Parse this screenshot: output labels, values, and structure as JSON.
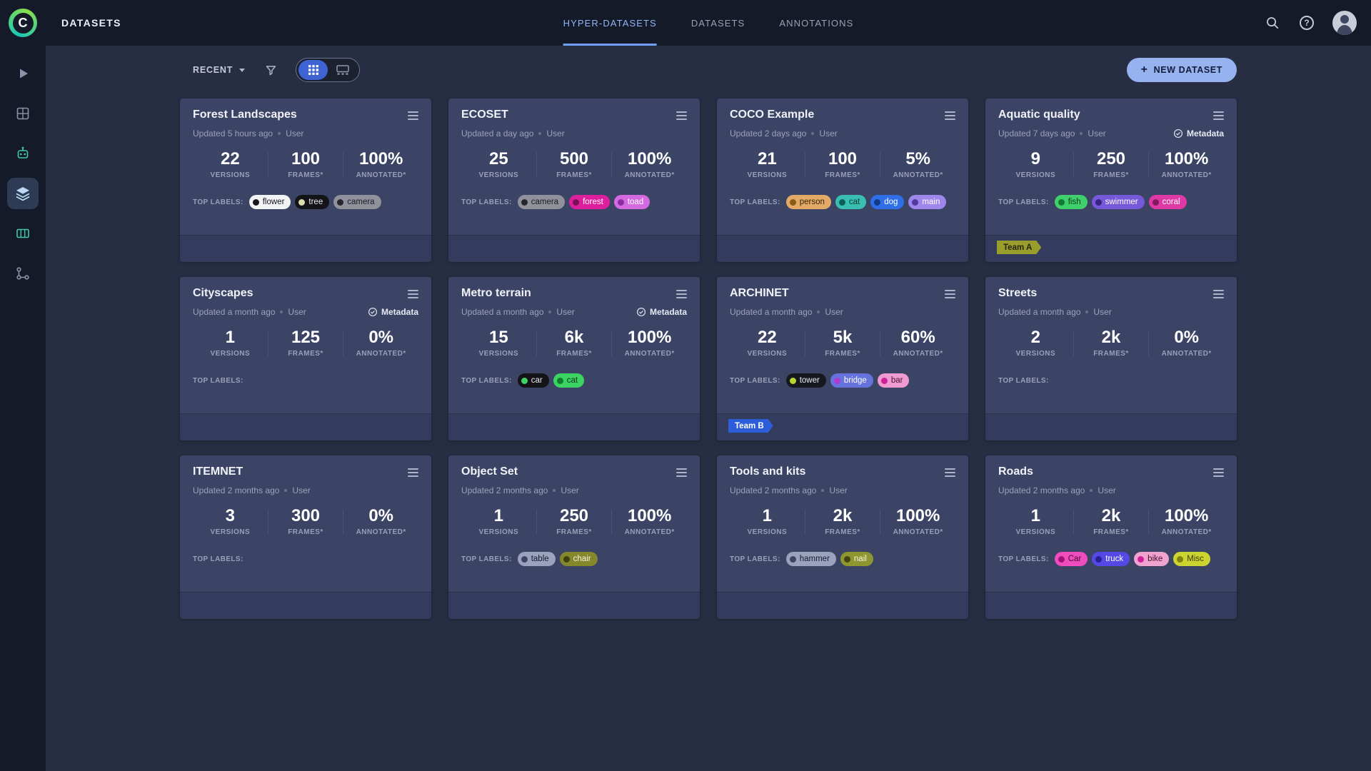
{
  "topbar": {
    "app_title": "DATASETS",
    "logo_letter": "C",
    "help_glyph": "?",
    "tabs": [
      {
        "label": "HYPER-DATASETS"
      },
      {
        "label": "DATASETS"
      },
      {
        "label": "ANNOTATIONS"
      }
    ]
  },
  "toolbar": {
    "sort_label": "RECENT",
    "plus": "+",
    "new_dataset_label": "NEW DATASET"
  },
  "stat_labels": {
    "versions": "VERSIONS",
    "frames": "FRAMES*",
    "annotated": "ANNOTATED*"
  },
  "labels_title": "TOP LABELS:",
  "metadata_label": "Metadata",
  "accent_color": "#8fb6f7",
  "cards": [
    {
      "title": "Forest Landscapes",
      "updated": "Updated 5 hours ago",
      "owner": "User",
      "metadata": false,
      "stats": {
        "versions": "22",
        "frames": "100",
        "annotated": "100%"
      },
      "labels": [
        {
          "label": "flower",
          "bg": "#f2f3f5",
          "text": "#17181d",
          "dot": "#17181d"
        },
        {
          "label": "tree",
          "bg": "#131318",
          "text": "#e9eaef",
          "dot": "#dadcae"
        },
        {
          "label": "camera",
          "bg": "#90919b",
          "text": "#1b1c22",
          "dot": "#26272e"
        }
      ],
      "team": null
    },
    {
      "title": "ECOSET",
      "updated": "Updated a day ago",
      "owner": "User",
      "metadata": false,
      "stats": {
        "versions": "25",
        "frames": "500",
        "annotated": "100%"
      },
      "labels": [
        {
          "label": "camera",
          "bg": "#90919b",
          "text": "#1b1c22",
          "dot": "#26272e"
        },
        {
          "label": "forest",
          "bg": "#dd1f9e",
          "text": "#ffffff",
          "dot": "#7c1058"
        },
        {
          "label": "toad",
          "bg": "#d36ae0",
          "text": "#ffffff",
          "dot": "#8b2da1"
        }
      ],
      "team": null
    },
    {
      "title": "COCO Example",
      "updated": "Updated 2 days ago",
      "owner": "User",
      "metadata": false,
      "stats": {
        "versions": "21",
        "frames": "100",
        "annotated": "5%"
      },
      "labels": [
        {
          "label": "person",
          "bg": "#e3a967",
          "text": "#3c2408",
          "dot": "#8a5a16"
        },
        {
          "label": "cat",
          "bg": "#38bfb2",
          "text": "#0b3a35",
          "dot": "#0d6058"
        },
        {
          "label": "dog",
          "bg": "#2e6fe8",
          "text": "#ffffff",
          "dot": "#123a85"
        },
        {
          "label": "main",
          "bg": "#9f86ea",
          "text": "#ffffff",
          "dot": "#53389f"
        }
      ],
      "team": null
    },
    {
      "title": "Aquatic quality",
      "updated": "Updated 7 days ago",
      "owner": "User",
      "metadata": true,
      "stats": {
        "versions": "9",
        "frames": "250",
        "annotated": "100%"
      },
      "labels": [
        {
          "label": "fish",
          "bg": "#3fd06b",
          "text": "#0a3a1c",
          "dot": "#0e7c34"
        },
        {
          "label": "swimmer",
          "bg": "#7659d8",
          "text": "#ffffff",
          "dot": "#392281"
        },
        {
          "label": "coral",
          "bg": "#de39a5",
          "text": "#ffffff",
          "dot": "#83195e"
        }
      ],
      "team": {
        "label": "Team A",
        "bg": "#989d2c",
        "text": "#24260c"
      }
    },
    {
      "title": "Cityscapes",
      "updated": "Updated a month ago",
      "owner": "User",
      "metadata": true,
      "stats": {
        "versions": "1",
        "frames": "125",
        "annotated": "0%"
      },
      "labels": [],
      "team": null
    },
    {
      "title": "Metro terrain",
      "updated": "Updated a month ago",
      "owner": "User",
      "metadata": true,
      "stats": {
        "versions": "15",
        "frames": "6k",
        "annotated": "100%"
      },
      "labels": [
        {
          "label": "car",
          "bg": "#131318",
          "text": "#e9eaef",
          "dot": "#3bd463"
        },
        {
          "label": "cat",
          "bg": "#3bd463",
          "text": "#0b3517",
          "dot": "#0f7c30"
        }
      ],
      "team": null
    },
    {
      "title": "ARCHINET",
      "updated": "Updated a month ago",
      "owner": "User",
      "metadata": false,
      "stats": {
        "versions": "22",
        "frames": "5k",
        "annotated": "60%"
      },
      "labels": [
        {
          "label": "tower",
          "bg": "#16181f",
          "text": "#e9eaef",
          "dot": "#b7d52c"
        },
        {
          "label": "bridge",
          "bg": "#6673dc",
          "text": "#ffffff",
          "dot": "#b13ad2"
        },
        {
          "label": "bar",
          "bg": "#ef9bd2",
          "text": "#4a0f31",
          "dot": "#cf1f99"
        }
      ],
      "team": {
        "label": "Team B",
        "bg": "#2b5ed8",
        "text": "#ffffff"
      }
    },
    {
      "title": "Streets",
      "updated": "Updated a month ago",
      "owner": "User",
      "metadata": false,
      "stats": {
        "versions": "2",
        "frames": "2k",
        "annotated": "0%"
      },
      "labels": [],
      "team": null
    },
    {
      "title": "ITEMNET",
      "updated": "Updated 2 months ago",
      "owner": "User",
      "metadata": false,
      "stats": {
        "versions": "3",
        "frames": "300",
        "annotated": "0%"
      },
      "labels": [],
      "team": null
    },
    {
      "title": "Object Set",
      "updated": "Updated 2 months ago",
      "owner": "User",
      "metadata": false,
      "stats": {
        "versions": "1",
        "frames": "250",
        "annotated": "100%"
      },
      "labels": [
        {
          "label": "table",
          "bg": "#9ba2be",
          "text": "#181b2c",
          "dot": "#3d4363"
        },
        {
          "label": "chair",
          "bg": "#84882b",
          "text": "#f4f5e2",
          "dot": "#3e400f"
        }
      ],
      "team": null
    },
    {
      "title": "Tools and kits",
      "updated": "Updated 2 months ago",
      "owner": "User",
      "metadata": false,
      "stats": {
        "versions": "1",
        "frames": "2k",
        "annotated": "100%"
      },
      "labels": [
        {
          "label": "hammer",
          "bg": "#9ba2be",
          "text": "#181b2c",
          "dot": "#3d4363"
        },
        {
          "label": "nail",
          "bg": "#8f9630",
          "text": "#f4f5e2",
          "dot": "#42450f"
        }
      ],
      "team": null
    },
    {
      "title": "Roads",
      "updated": "Updated 2 months ago",
      "owner": "User",
      "metadata": false,
      "stats": {
        "versions": "1",
        "frames": "2k",
        "annotated": "100%"
      },
      "labels": [
        {
          "label": "Car",
          "bg": "#ef4cbe",
          "text": "#4d0a36",
          "dot": "#9e1375"
        },
        {
          "label": "truck",
          "bg": "#5449e5",
          "text": "#ffffff",
          "dot": "#2a1f93"
        },
        {
          "label": "bike",
          "bg": "#f0a3cf",
          "text": "#48102f",
          "dot": "#cf1f99"
        },
        {
          "label": "Misc",
          "bg": "#ccd42f",
          "text": "#3b3d0a",
          "dot": "#7e8314"
        }
      ],
      "team": null
    }
  ]
}
